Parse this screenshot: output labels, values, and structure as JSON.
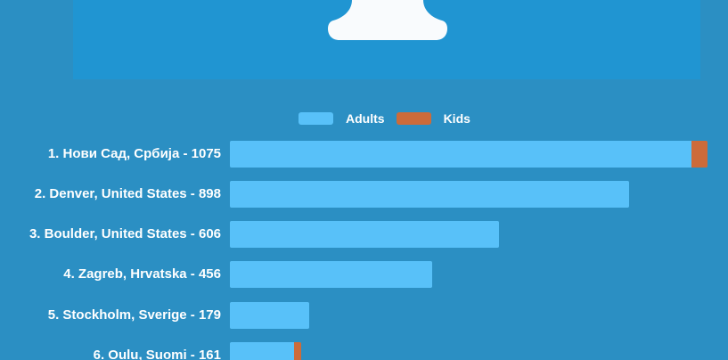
{
  "colors": {
    "background": "#2b8fc3",
    "header_panel": "#2095d2",
    "adults_bar": "#58c1f9",
    "kids_bar": "#cc6b3a",
    "text": "#ffffff",
    "header_shape": "#f9fbfd"
  },
  "legend": {
    "items": [
      {
        "label": "Adults",
        "color": "#58c1f9"
      },
      {
        "label": "Kids",
        "color": "#cc6b3a"
      }
    ]
  },
  "chart_data": {
    "type": "bar",
    "orientation": "horizontal",
    "stacked": true,
    "legend_position": "top-center",
    "grid": false,
    "categories": [
      "1. Нови Сад, Србија - 1075",
      "2. Denver, United States - 898",
      "3. Boulder, United States - 606",
      "4. Zagreb, Hrvatska - 456",
      "5. Stockholm, Sverige - 179",
      "6. Oulu, Suomi - 161"
    ],
    "totals": [
      1075,
      898,
      606,
      456,
      179,
      161
    ],
    "series": [
      {
        "name": "Adults",
        "color": "#58c1f9",
        "values": [
          1039,
          898,
          606,
          456,
          179,
          145
        ]
      },
      {
        "name": "Kids",
        "color": "#cc6b3a",
        "values": [
          36,
          0,
          0,
          0,
          0,
          16
        ]
      }
    ]
  }
}
